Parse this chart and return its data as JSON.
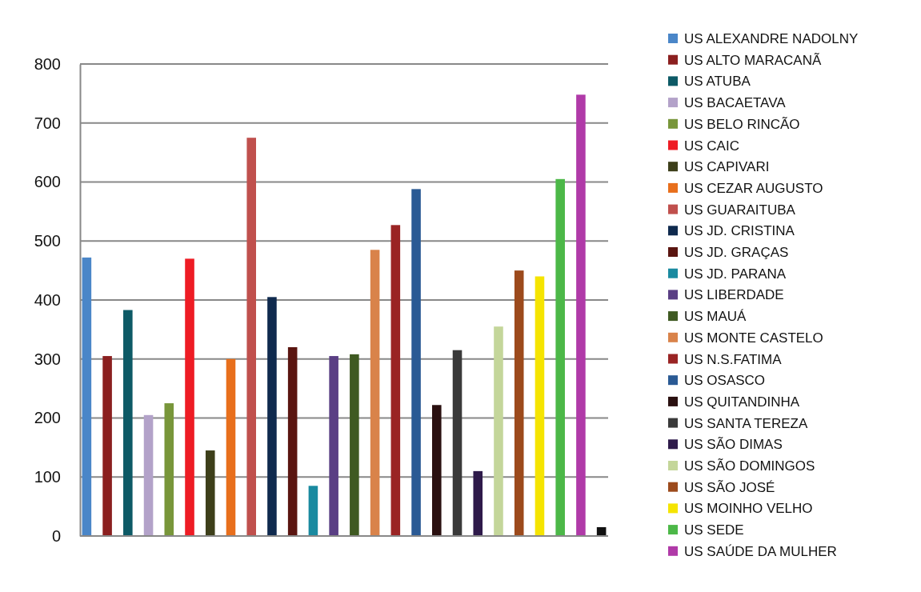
{
  "chart_data": {
    "type": "bar",
    "categories": [
      null
    ],
    "ylim": [
      0,
      800
    ],
    "yticks": [
      0,
      100,
      200,
      300,
      400,
      500,
      600,
      700,
      800
    ],
    "grid": "y",
    "legend": "right",
    "series": [
      {
        "name": "US ALEXANDRE NADOLNY",
        "color": "#4a86c8",
        "values": [
          472
        ]
      },
      {
        "name": "US ALTO MARACANÃ",
        "color": "#8b1f1f",
        "values": [
          305
        ]
      },
      {
        "name": "US ATUBA",
        "color": "#0d5a66",
        "values": [
          383
        ]
      },
      {
        "name": "US BACAETAVA",
        "color": "#b3a2c9",
        "values": [
          205
        ]
      },
      {
        "name": "US BELO RINCÃO",
        "color": "#78963a",
        "values": [
          225
        ]
      },
      {
        "name": "US CAIC",
        "color": "#ee1c24",
        "values": [
          470
        ]
      },
      {
        "name": "US CAPIVARI",
        "color": "#3d3f1a",
        "values": [
          145
        ]
      },
      {
        "name": "US CEZAR AUGUSTO",
        "color": "#e86f1c",
        "values": [
          300
        ]
      },
      {
        "name": "US GUARAITUBA",
        "color": "#c0504d",
        "values": [
          675
        ]
      },
      {
        "name": "US JD. CRISTINA",
        "color": "#0f2a4e",
        "values": [
          405
        ]
      },
      {
        "name": "US JD. GRAÇAS",
        "color": "#5a1510",
        "values": [
          320
        ]
      },
      {
        "name": "US JD. PARANA",
        "color": "#1a8aa0",
        "values": [
          85
        ]
      },
      {
        "name": "US LIBERDADE",
        "color": "#5a3f84",
        "values": [
          305
        ]
      },
      {
        "name": "US MAUÁ",
        "color": "#3f5a22",
        "values": [
          308
        ]
      },
      {
        "name": "US MONTE CASTELO",
        "color": "#d9834a",
        "values": [
          485
        ]
      },
      {
        "name": "US N.S.FATIMA",
        "color": "#9a2424",
        "values": [
          527
        ]
      },
      {
        "name": "US OSASCO",
        "color": "#2a5a94",
        "values": [
          588
        ]
      },
      {
        "name": "US QUITANDINHA",
        "color": "#2a1010",
        "values": [
          222
        ]
      },
      {
        "name": "US SANTA TEREZA",
        "color": "#3a3a3a",
        "values": [
          315
        ]
      },
      {
        "name": "US SÃO DIMAS",
        "color": "#2e1a4a",
        "values": [
          110
        ]
      },
      {
        "name": "US SÃO DOMINGOS",
        "color": "#c4d69a",
        "values": [
          355
        ]
      },
      {
        "name": "US SÃO JOSÉ",
        "color": "#9c4a1c",
        "values": [
          450
        ]
      },
      {
        "name": "US MOINHO VELHO",
        "color": "#f5e400",
        "values": [
          440
        ]
      },
      {
        "name": "US SEDE",
        "color": "#4cb848",
        "values": [
          605
        ]
      },
      {
        "name": "US SAÚDE DA MULHER",
        "color": "#b03aa8",
        "values": [
          748
        ]
      },
      {
        "color": "#111111",
        "values": [
          15
        ]
      }
    ]
  }
}
